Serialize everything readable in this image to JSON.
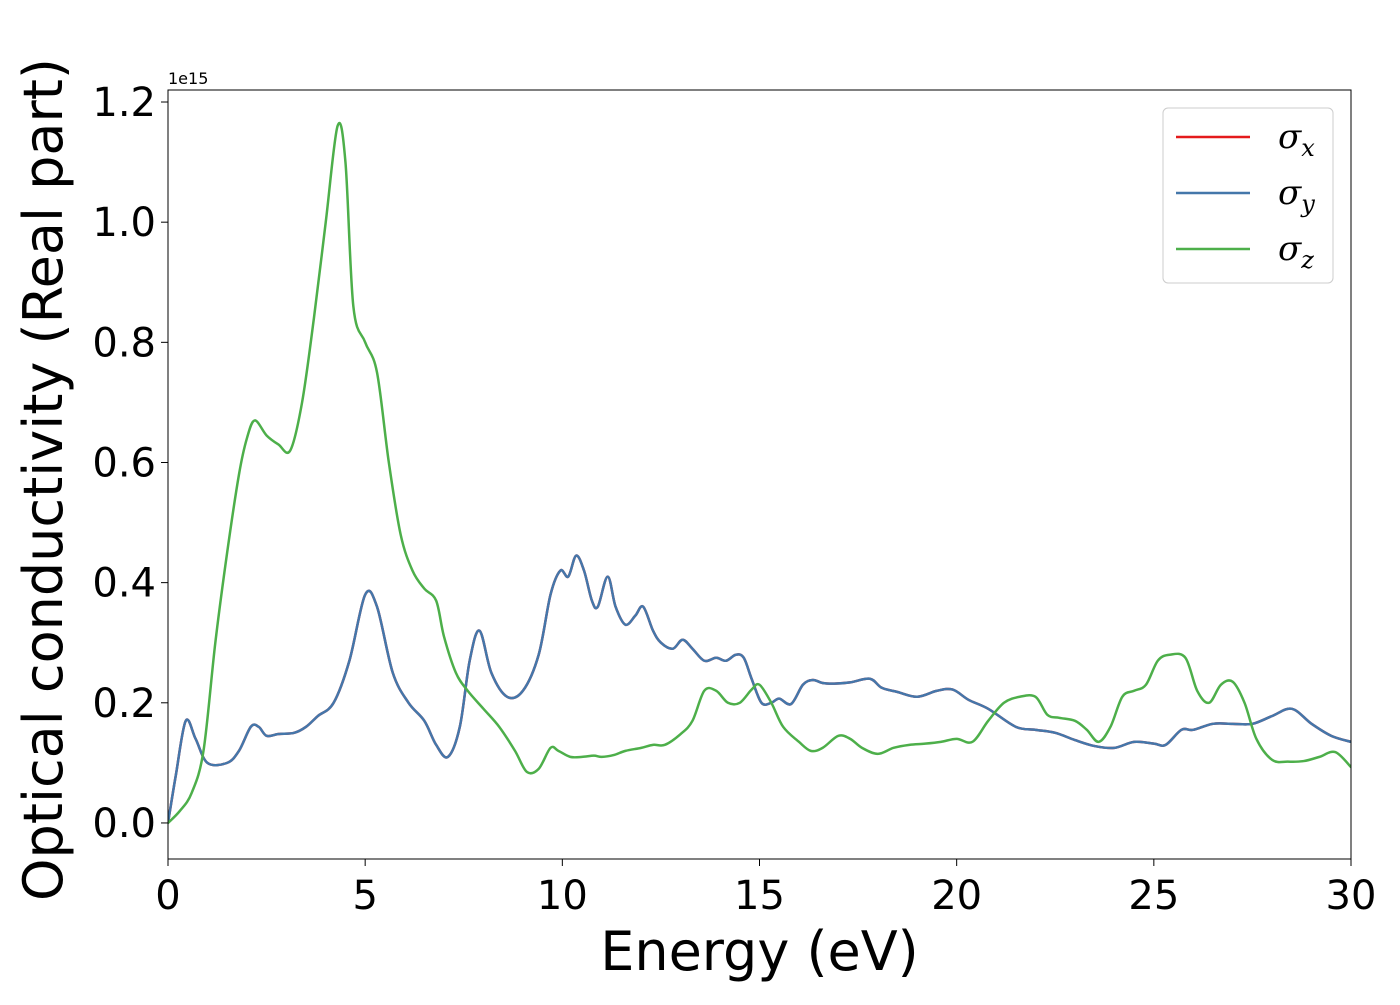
{
  "chart_data": {
    "type": "line",
    "xlabel": "Energy (eV)",
    "ylabel": "Optical conductivity (Real part)",
    "y_offset_label": "1e15",
    "xlim": [
      0,
      30
    ],
    "ylim": [
      -0.06,
      1.22
    ],
    "x_ticks": [
      0,
      5,
      10,
      15,
      20,
      25,
      30
    ],
    "x_tick_labels": [
      "0",
      "5",
      "10",
      "15",
      "20",
      "25",
      "30"
    ],
    "y_ticks": [
      0.0,
      0.2,
      0.4,
      0.6,
      0.8,
      1.0,
      1.2
    ],
    "y_tick_labels": [
      "0.0",
      "0.2",
      "0.4",
      "0.6",
      "0.8",
      "1.0",
      "1.2"
    ],
    "grid": false,
    "legend_position": "top-right",
    "series": [
      {
        "name": "σ",
        "subscript": "x",
        "color": "#e41a1c",
        "x": [
          0,
          0.2,
          0.45,
          0.7,
          1.0,
          1.5,
          1.8,
          2.1,
          2.3,
          2.5,
          2.8,
          3.2,
          3.5,
          3.8,
          4.2,
          4.6,
          5.0,
          5.3,
          5.7,
          6.1,
          6.5,
          6.8,
          7.1,
          7.4,
          7.65,
          7.9,
          8.2,
          8.6,
          9.0,
          9.4,
          9.7,
          9.95,
          10.15,
          10.35,
          10.55,
          10.75,
          10.9,
          11.15,
          11.35,
          11.6,
          11.85,
          12.05,
          12.3,
          12.5,
          12.8,
          13.05,
          13.3,
          13.6,
          13.9,
          14.15,
          14.4,
          14.6,
          14.8,
          15.05,
          15.3,
          15.5,
          15.8,
          16.1,
          16.35,
          16.6,
          16.9,
          17.3,
          17.8,
          18.1,
          18.5,
          19.0,
          19.5,
          19.9,
          20.3,
          20.8,
          21.5,
          22.0,
          22.5,
          23.0,
          23.5,
          24.0,
          24.5,
          25.0,
          25.3,
          25.7,
          26.0,
          26.5,
          27.0,
          27.5,
          28.0,
          28.5,
          29.0,
          29.5,
          30.0
        ],
        "values": [
          0.0,
          0.08,
          0.17,
          0.14,
          0.1,
          0.1,
          0.12,
          0.16,
          0.16,
          0.145,
          0.148,
          0.15,
          0.16,
          0.178,
          0.2,
          0.27,
          0.38,
          0.36,
          0.25,
          0.2,
          0.17,
          0.13,
          0.11,
          0.16,
          0.27,
          0.32,
          0.25,
          0.21,
          0.22,
          0.28,
          0.38,
          0.42,
          0.41,
          0.445,
          0.42,
          0.37,
          0.36,
          0.41,
          0.36,
          0.33,
          0.345,
          0.36,
          0.32,
          0.3,
          0.29,
          0.305,
          0.29,
          0.27,
          0.275,
          0.27,
          0.28,
          0.275,
          0.24,
          0.2,
          0.2,
          0.207,
          0.198,
          0.23,
          0.238,
          0.233,
          0.232,
          0.234,
          0.24,
          0.225,
          0.218,
          0.21,
          0.22,
          0.222,
          0.205,
          0.19,
          0.16,
          0.155,
          0.15,
          0.138,
          0.128,
          0.125,
          0.135,
          0.132,
          0.13,
          0.155,
          0.155,
          0.165,
          0.165,
          0.165,
          0.178,
          0.19,
          0.165,
          0.145,
          0.135
        ]
      },
      {
        "name": "σ",
        "subscript": "y",
        "color": "#4477aa",
        "x": [
          0,
          0.2,
          0.45,
          0.7,
          1.0,
          1.5,
          1.8,
          2.1,
          2.3,
          2.5,
          2.8,
          3.2,
          3.5,
          3.8,
          4.2,
          4.6,
          5.0,
          5.3,
          5.7,
          6.1,
          6.5,
          6.8,
          7.1,
          7.4,
          7.65,
          7.9,
          8.2,
          8.6,
          9.0,
          9.4,
          9.7,
          9.95,
          10.15,
          10.35,
          10.55,
          10.75,
          10.9,
          11.15,
          11.35,
          11.6,
          11.85,
          12.05,
          12.3,
          12.5,
          12.8,
          13.05,
          13.3,
          13.6,
          13.9,
          14.15,
          14.4,
          14.6,
          14.8,
          15.05,
          15.3,
          15.5,
          15.8,
          16.1,
          16.35,
          16.6,
          16.9,
          17.3,
          17.8,
          18.1,
          18.5,
          19.0,
          19.5,
          19.9,
          20.3,
          20.8,
          21.5,
          22.0,
          22.5,
          23.0,
          23.5,
          24.0,
          24.5,
          25.0,
          25.3,
          25.7,
          26.0,
          26.5,
          27.0,
          27.5,
          28.0,
          28.5,
          29.0,
          29.5,
          30.0
        ],
        "values": [
          0.0,
          0.08,
          0.17,
          0.14,
          0.1,
          0.1,
          0.12,
          0.16,
          0.16,
          0.145,
          0.148,
          0.15,
          0.16,
          0.178,
          0.2,
          0.27,
          0.38,
          0.36,
          0.25,
          0.2,
          0.17,
          0.13,
          0.11,
          0.16,
          0.27,
          0.32,
          0.25,
          0.21,
          0.22,
          0.28,
          0.38,
          0.42,
          0.41,
          0.445,
          0.42,
          0.37,
          0.36,
          0.41,
          0.36,
          0.33,
          0.345,
          0.36,
          0.32,
          0.3,
          0.29,
          0.305,
          0.29,
          0.27,
          0.275,
          0.27,
          0.28,
          0.275,
          0.24,
          0.2,
          0.2,
          0.207,
          0.198,
          0.23,
          0.238,
          0.233,
          0.232,
          0.234,
          0.24,
          0.225,
          0.218,
          0.21,
          0.22,
          0.222,
          0.205,
          0.19,
          0.16,
          0.155,
          0.15,
          0.138,
          0.128,
          0.125,
          0.135,
          0.132,
          0.13,
          0.155,
          0.155,
          0.165,
          0.165,
          0.165,
          0.178,
          0.19,
          0.165,
          0.145,
          0.135
        ]
      },
      {
        "name": "σ",
        "subscript": "z",
        "color": "#4daf4a",
        "x": [
          0,
          0.3,
          0.6,
          0.9,
          1.2,
          1.5,
          1.8,
          2.0,
          2.2,
          2.5,
          2.8,
          3.1,
          3.4,
          3.7,
          4.0,
          4.3,
          4.5,
          4.7,
          5.0,
          5.3,
          5.6,
          5.9,
          6.2,
          6.5,
          6.8,
          7.0,
          7.3,
          7.6,
          8.0,
          8.4,
          8.8,
          9.1,
          9.4,
          9.7,
          9.9,
          10.2,
          10.5,
          10.8,
          11.0,
          11.3,
          11.6,
          12.0,
          12.3,
          12.6,
          13.0,
          13.3,
          13.6,
          13.9,
          14.2,
          14.5,
          14.8,
          15.0,
          15.3,
          15.6,
          16.0,
          16.3,
          16.6,
          17.0,
          17.3,
          17.6,
          18.0,
          18.4,
          18.8,
          19.2,
          19.6,
          20.0,
          20.4,
          20.8,
          21.2,
          21.6,
          22.0,
          22.3,
          22.6,
          23.0,
          23.3,
          23.6,
          23.9,
          24.2,
          24.5,
          24.8,
          25.1,
          25.4,
          25.8,
          26.1,
          26.4,
          26.7,
          27.0,
          27.3,
          27.6,
          28.0,
          28.4,
          28.8,
          29.2,
          29.6,
          30.0
        ],
        "values": [
          0.0,
          0.02,
          0.05,
          0.12,
          0.3,
          0.45,
          0.58,
          0.64,
          0.67,
          0.645,
          0.63,
          0.62,
          0.7,
          0.84,
          1.0,
          1.16,
          1.1,
          0.86,
          0.8,
          0.75,
          0.6,
          0.48,
          0.42,
          0.39,
          0.37,
          0.31,
          0.25,
          0.22,
          0.19,
          0.16,
          0.12,
          0.085,
          0.09,
          0.125,
          0.12,
          0.11,
          0.11,
          0.112,
          0.11,
          0.113,
          0.12,
          0.125,
          0.13,
          0.13,
          0.148,
          0.17,
          0.22,
          0.22,
          0.2,
          0.2,
          0.222,
          0.23,
          0.2,
          0.16,
          0.135,
          0.12,
          0.125,
          0.145,
          0.14,
          0.125,
          0.115,
          0.125,
          0.13,
          0.132,
          0.135,
          0.14,
          0.135,
          0.17,
          0.2,
          0.21,
          0.21,
          0.18,
          0.175,
          0.17,
          0.155,
          0.135,
          0.16,
          0.21,
          0.22,
          0.23,
          0.27,
          0.28,
          0.275,
          0.22,
          0.2,
          0.23,
          0.235,
          0.2,
          0.14,
          0.105,
          0.102,
          0.103,
          0.11,
          0.118,
          0.093
        ]
      }
    ]
  }
}
